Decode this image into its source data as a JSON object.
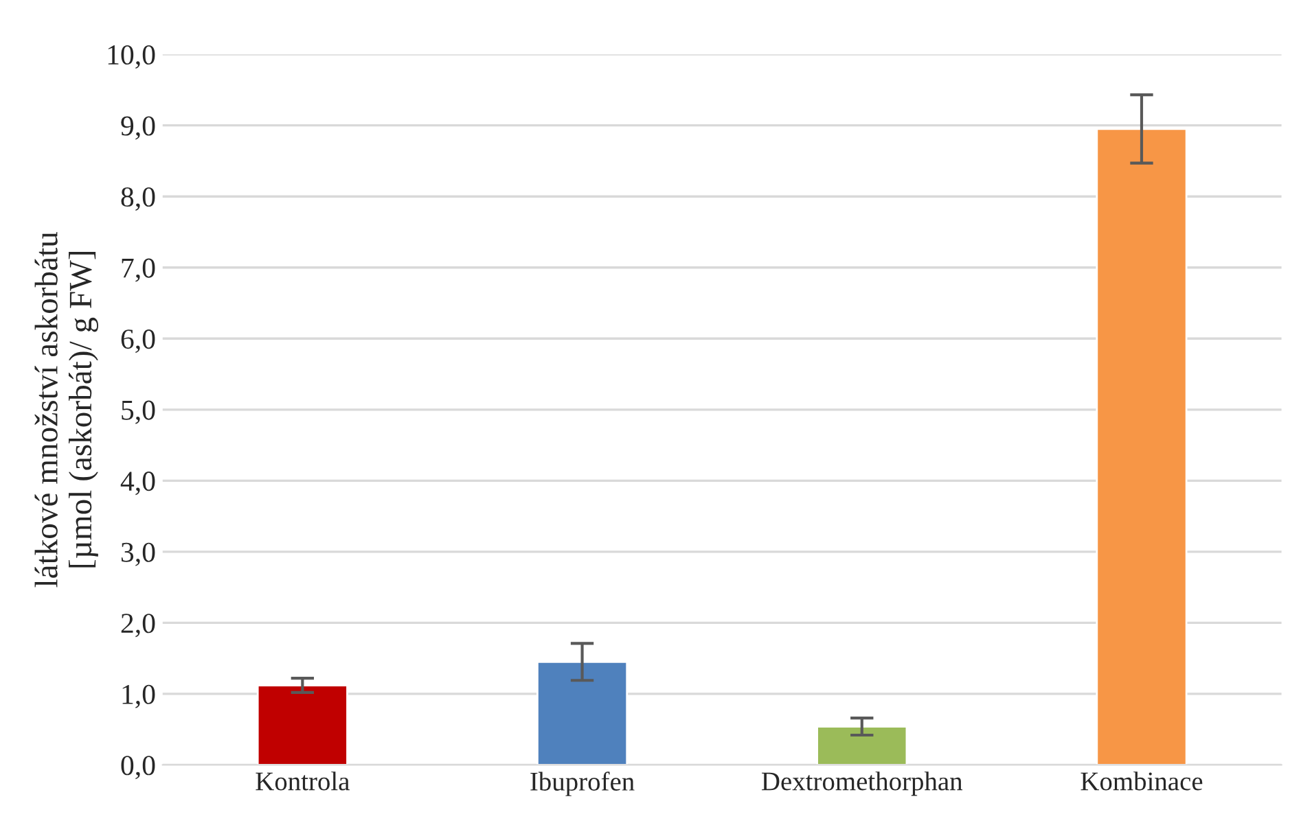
{
  "chart_data": {
    "type": "bar",
    "ylabel": "látkové množství askorbátu\n[µmol (askorbát)/ g FW]",
    "categories": [
      "Kontrola",
      "Ibuprofen",
      "Dextromethorphan",
      "Kombinace"
    ],
    "values": [
      1.12,
      1.45,
      0.54,
      8.95
    ],
    "errors": [
      0.1,
      0.26,
      0.12,
      0.48
    ],
    "colors": [
      "#c00000",
      "#4f81bd",
      "#9bbb59",
      "#f79646"
    ],
    "ylim": [
      0,
      10
    ],
    "yticks": [
      {
        "value": 0,
        "label": "0,0"
      },
      {
        "value": 1,
        "label": "1,0"
      },
      {
        "value": 2,
        "label": "2,0"
      },
      {
        "value": 3,
        "label": "3,0"
      },
      {
        "value": 4,
        "label": "4,0"
      },
      {
        "value": 5,
        "label": "5,0"
      },
      {
        "value": 6,
        "label": "6,0"
      },
      {
        "value": 7,
        "label": "7,0"
      },
      {
        "value": 8,
        "label": "8,0"
      },
      {
        "value": 9,
        "label": "9,0"
      },
      {
        "value": 10,
        "label": "10,0"
      }
    ],
    "grid": "y",
    "legend": false
  }
}
